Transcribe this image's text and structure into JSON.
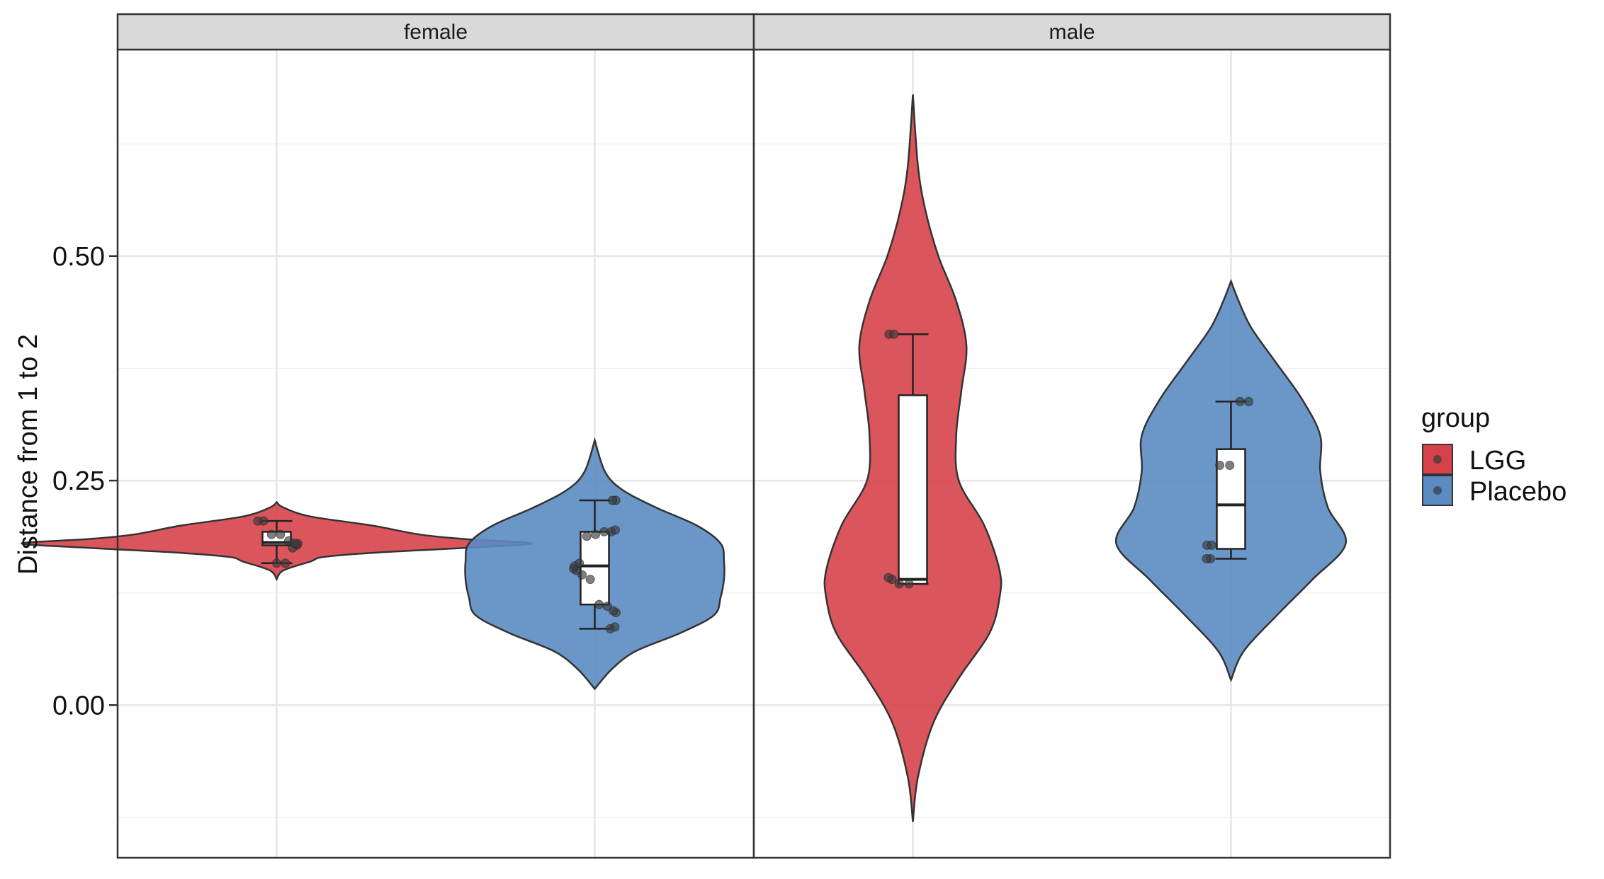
{
  "chart_data": {
    "type": "violin",
    "ylabel": "Distance from 1 to 2",
    "xlabel": "",
    "ylim": [
      -0.17,
      0.73
    ],
    "y_ticks": [
      0.0,
      0.25,
      0.5
    ],
    "y_tick_labels": [
      "0.00",
      "0.25",
      "0.50"
    ],
    "grid": true,
    "legend": {
      "title": "group",
      "position": "right",
      "entries": [
        {
          "label": "LGG",
          "color": "#D7424A"
        },
        {
          "label": "Placebo",
          "color": "#5A8BC2"
        }
      ]
    },
    "facets": [
      {
        "label": "female",
        "groups": [
          {
            "name": "LGG",
            "color": "#D7424A",
            "violin_range": [
              0.14,
              0.226
            ],
            "density": [
              [
                0.14,
                0.0
              ],
              [
                0.15,
                0.02
              ],
              [
                0.16,
                0.1
              ],
              [
                0.165,
                0.14
              ],
              [
                0.17,
                0.3
              ],
              [
                0.175,
                0.55
              ],
              [
                0.18,
                0.75
              ],
              [
                0.185,
                0.55
              ],
              [
                0.19,
                0.42
              ],
              [
                0.2,
                0.28
              ],
              [
                0.21,
                0.1
              ],
              [
                0.22,
                0.02
              ],
              [
                0.226,
                0.0
              ]
            ],
            "box": {
              "whisker_low": 0.158,
              "q1": 0.178,
              "median": 0.181,
              "q3": 0.193,
              "whisker_high": 0.205
            },
            "points": [
              0.158,
              0.158,
              0.175,
              0.178,
              0.18,
              0.18,
              0.183,
              0.19,
              0.19,
              0.205,
              0.205
            ]
          },
          {
            "name": "Placebo",
            "color": "#5A8BC2",
            "violin_range": [
              0.018,
              0.295
            ],
            "density": [
              [
                0.018,
                0.0
              ],
              [
                0.04,
                0.05
              ],
              [
                0.06,
                0.12
              ],
              [
                0.08,
                0.25
              ],
              [
                0.1,
                0.35
              ],
              [
                0.12,
                0.37
              ],
              [
                0.14,
                0.38
              ],
              [
                0.16,
                0.38
              ],
              [
                0.18,
                0.37
              ],
              [
                0.2,
                0.3
              ],
              [
                0.22,
                0.18
              ],
              [
                0.24,
                0.08
              ],
              [
                0.26,
                0.03
              ],
              [
                0.295,
                0.0
              ]
            ],
            "box": {
              "whisker_low": 0.085,
              "q1": 0.112,
              "median": 0.155,
              "q3": 0.193,
              "whisker_high": 0.228
            },
            "points": [
              0.085,
              0.087,
              0.103,
              0.105,
              0.11,
              0.112,
              0.14,
              0.145,
              0.15,
              0.152,
              0.155,
              0.158,
              0.188,
              0.19,
              0.193,
              0.193,
              0.195,
              0.228,
              0.228
            ]
          }
        ]
      },
      {
        "label": "male",
        "groups": [
          {
            "name": "LGG",
            "color": "#D7424A",
            "violin_range": [
              -0.13,
              0.68
            ],
            "density": [
              [
                -0.13,
                0.0
              ],
              [
                -0.08,
                0.02
              ],
              [
                -0.02,
                0.08
              ],
              [
                0.03,
                0.18
              ],
              [
                0.08,
                0.3
              ],
              [
                0.12,
                0.34
              ],
              [
                0.15,
                0.34
              ],
              [
                0.2,
                0.28
              ],
              [
                0.25,
                0.18
              ],
              [
                0.3,
                0.17
              ],
              [
                0.35,
                0.19
              ],
              [
                0.4,
                0.21
              ],
              [
                0.45,
                0.17
              ],
              [
                0.5,
                0.1
              ],
              [
                0.55,
                0.05
              ],
              [
                0.6,
                0.02
              ],
              [
                0.68,
                0.0
              ]
            ],
            "box": {
              "whisker_low": 0.135,
              "q1": 0.135,
              "median": 0.14,
              "q3": 0.345,
              "whisker_high": 0.413
            },
            "points": [
              0.135,
              0.135,
              0.14,
              0.142,
              0.413,
              0.413
            ]
          },
          {
            "name": "Placebo",
            "color": "#5A8BC2",
            "violin_range": [
              0.028,
              0.472
            ],
            "density": [
              [
                0.028,
                0.0
              ],
              [
                0.06,
                0.05
              ],
              [
                0.1,
                0.18
              ],
              [
                0.14,
                0.32
              ],
              [
                0.18,
                0.45
              ],
              [
                0.22,
                0.38
              ],
              [
                0.26,
                0.35
              ],
              [
                0.3,
                0.35
              ],
              [
                0.34,
                0.28
              ],
              [
                0.38,
                0.18
              ],
              [
                0.42,
                0.08
              ],
              [
                0.45,
                0.03
              ],
              [
                0.472,
                0.0
              ]
            ],
            "box": {
              "whisker_low": 0.163,
              "q1": 0.174,
              "median": 0.223,
              "q3": 0.285,
              "whisker_high": 0.338
            },
            "points": [
              0.163,
              0.163,
              0.178,
              0.178,
              0.267,
              0.267,
              0.338,
              0.338
            ]
          }
        ]
      }
    ]
  }
}
